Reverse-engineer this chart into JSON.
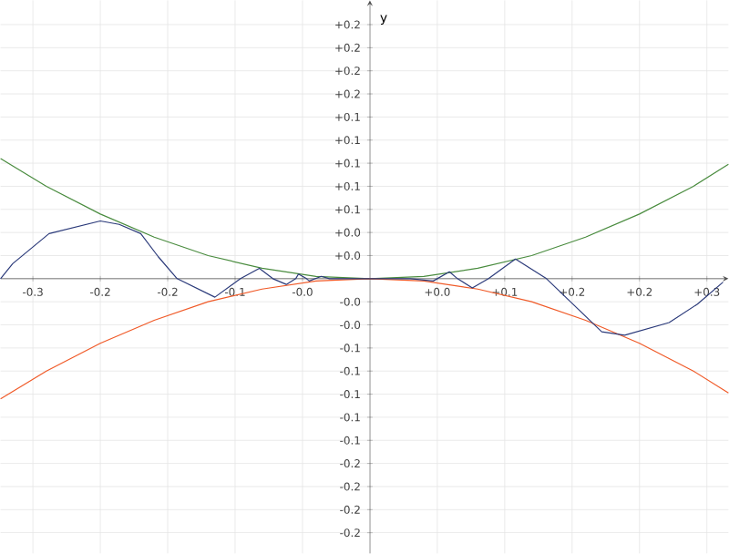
{
  "chart_data": {
    "type": "line",
    "ylabel": "y",
    "xlim": [
      -0.274,
      0.266
    ],
    "ylim": [
      -0.238,
      0.241
    ],
    "grid": true,
    "xticks": [
      {
        "value": -0.25,
        "label": "-0.3"
      },
      {
        "value": -0.2,
        "label": "-0.2"
      },
      {
        "value": -0.15,
        "label": "-0.2"
      },
      {
        "value": -0.1,
        "label": "-0.1"
      },
      {
        "value": -0.05,
        "label": "-0.0"
      },
      {
        "value": 0.05,
        "label": "+0.0"
      },
      {
        "value": 0.1,
        "label": "+0.1"
      },
      {
        "value": 0.15,
        "label": "+0.2"
      },
      {
        "value": 0.2,
        "label": "+0.2"
      },
      {
        "value": 0.25,
        "label": "+0.3"
      }
    ],
    "yticks": [
      {
        "value": -0.22,
        "label": "-0.2"
      },
      {
        "value": -0.2,
        "label": "-0.2"
      },
      {
        "value": -0.18,
        "label": "-0.2"
      },
      {
        "value": -0.16,
        "label": "-0.2"
      },
      {
        "value": -0.14,
        "label": "-0.1"
      },
      {
        "value": -0.12,
        "label": "-0.1"
      },
      {
        "value": -0.1,
        "label": "-0.1"
      },
      {
        "value": -0.08,
        "label": "-0.1"
      },
      {
        "value": -0.06,
        "label": "-0.1"
      },
      {
        "value": -0.04,
        "label": "-0.0"
      },
      {
        "value": -0.02,
        "label": "-0.0"
      },
      {
        "value": 0.02,
        "label": "+0.0"
      },
      {
        "value": 0.04,
        "label": "+0.0"
      },
      {
        "value": 0.06,
        "label": "+0.1"
      },
      {
        "value": 0.08,
        "label": "+0.1"
      },
      {
        "value": 0.1,
        "label": "+0.1"
      },
      {
        "value": 0.12,
        "label": "+0.1"
      },
      {
        "value": 0.14,
        "label": "+0.1"
      },
      {
        "value": 0.16,
        "label": "+0.2"
      },
      {
        "value": 0.18,
        "label": "+0.2"
      },
      {
        "value": 0.2,
        "label": "+0.2"
      },
      {
        "value": 0.22,
        "label": "+0.2"
      }
    ],
    "series": [
      {
        "color": "#4a8c3f",
        "x": [
          -0.274,
          -0.24,
          -0.2,
          -0.16,
          -0.12,
          -0.08,
          -0.04,
          0,
          0.04,
          0.08,
          0.12,
          0.16,
          0.2,
          0.24,
          0.266
        ],
        "values": [
          0.104,
          0.08,
          0.056,
          0.036,
          0.02,
          0.009,
          0.002,
          0,
          0.002,
          0.009,
          0.02,
          0.036,
          0.056,
          0.08,
          0.099
        ]
      },
      {
        "color": "#f05a28",
        "x": [
          -0.274,
          -0.24,
          -0.2,
          -0.16,
          -0.12,
          -0.08,
          -0.04,
          0,
          0.04,
          0.08,
          0.12,
          0.16,
          0.2,
          0.24,
          0.266
        ],
        "values": [
          -0.104,
          -0.08,
          -0.056,
          -0.036,
          -0.02,
          -0.009,
          -0.002,
          0,
          -0.002,
          -0.009,
          -0.02,
          -0.036,
          -0.056,
          -0.08,
          -0.099
        ]
      },
      {
        "color": "#2b3a7a",
        "x": [
          -0.274,
          -0.265,
          -0.238,
          -0.2,
          -0.186,
          -0.17,
          -0.157,
          -0.143,
          -0.115,
          -0.096,
          -0.082,
          -0.072,
          -0.062,
          -0.055,
          -0.053,
          -0.047,
          -0.045,
          -0.036,
          -0.03,
          0,
          0.03,
          0.047,
          0.059,
          0.065,
          0.076,
          0.088,
          0.108,
          0.131,
          0.172,
          0.189,
          0.222,
          0.243,
          0.262
        ],
        "values": [
          0,
          0.013,
          0.039,
          0.05,
          0.047,
          0.039,
          0.019,
          0,
          -0.016,
          0,
          0.009,
          0,
          -0.005,
          0,
          0.004,
          0,
          -0.002,
          0.002,
          0,
          0,
          0,
          -0.002,
          0.006,
          0,
          -0.008,
          0,
          0.017,
          0,
          -0.046,
          -0.049,
          -0.038,
          -0.022,
          -0.003
        ]
      }
    ]
  }
}
